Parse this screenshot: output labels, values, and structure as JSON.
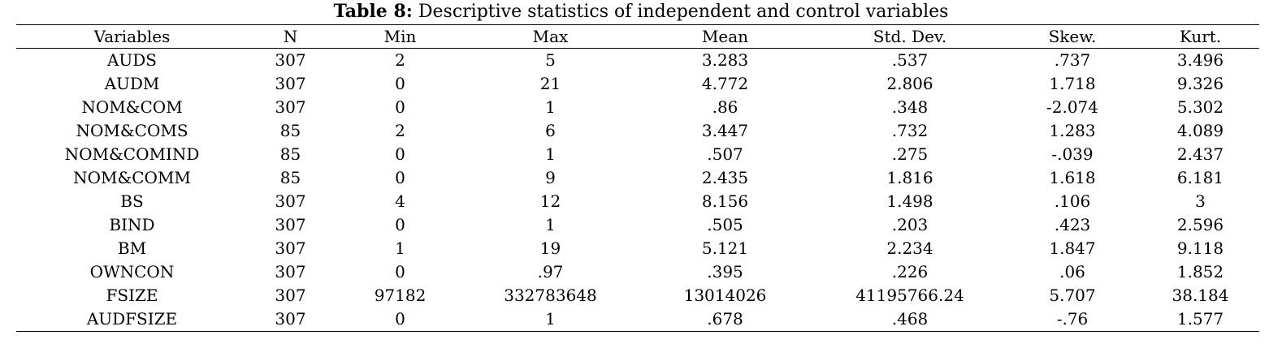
{
  "caption": {
    "lead": "Table 8:",
    "text": " Descriptive statistics of independent and control variables"
  },
  "table": {
    "headers": [
      "Variables",
      "N",
      "Min",
      "Max",
      "Mean",
      "Std. Dev.",
      "Skew.",
      "Kurt."
    ],
    "rows": [
      [
        "AUDS",
        "307",
        "2",
        "5",
        "3.283",
        ".537",
        ".737",
        "3.496"
      ],
      [
        "AUDM",
        "307",
        "0",
        "21",
        "4.772",
        "2.806",
        "1.718",
        "9.326"
      ],
      [
        "NOM&COM",
        "307",
        "0",
        "1",
        ".86",
        ".348",
        "-2.074",
        "5.302"
      ],
      [
        "NOM&COMS",
        "85",
        "2",
        "6",
        "3.447",
        ".732",
        "1.283",
        "4.089"
      ],
      [
        "NOM&COMIND",
        "85",
        "0",
        "1",
        ".507",
        ".275",
        "-.039",
        "2.437"
      ],
      [
        "NOM&COMM",
        "85",
        "0",
        "9",
        "2.435",
        "1.816",
        "1.618",
        "6.181"
      ],
      [
        "BS",
        "307",
        "4",
        "12",
        "8.156",
        "1.498",
        ".106",
        "3"
      ],
      [
        "BIND",
        "307",
        "0",
        "1",
        ".505",
        ".203",
        ".423",
        "2.596"
      ],
      [
        "BM",
        "307",
        "1",
        "19",
        "5.121",
        "2.234",
        "1.847",
        "9.118"
      ],
      [
        "OWNCON",
        "307",
        "0",
        ".97",
        ".395",
        ".226",
        ".06",
        "1.852"
      ],
      [
        "FSIZE",
        "307",
        "97182",
        "332783648",
        "13014026",
        "41195766.24",
        "5.707",
        "38.184"
      ],
      [
        "AUDFSIZE",
        "307",
        "0",
        "1",
        ".678",
        ".468",
        "-.76",
        "1.577"
      ]
    ]
  }
}
